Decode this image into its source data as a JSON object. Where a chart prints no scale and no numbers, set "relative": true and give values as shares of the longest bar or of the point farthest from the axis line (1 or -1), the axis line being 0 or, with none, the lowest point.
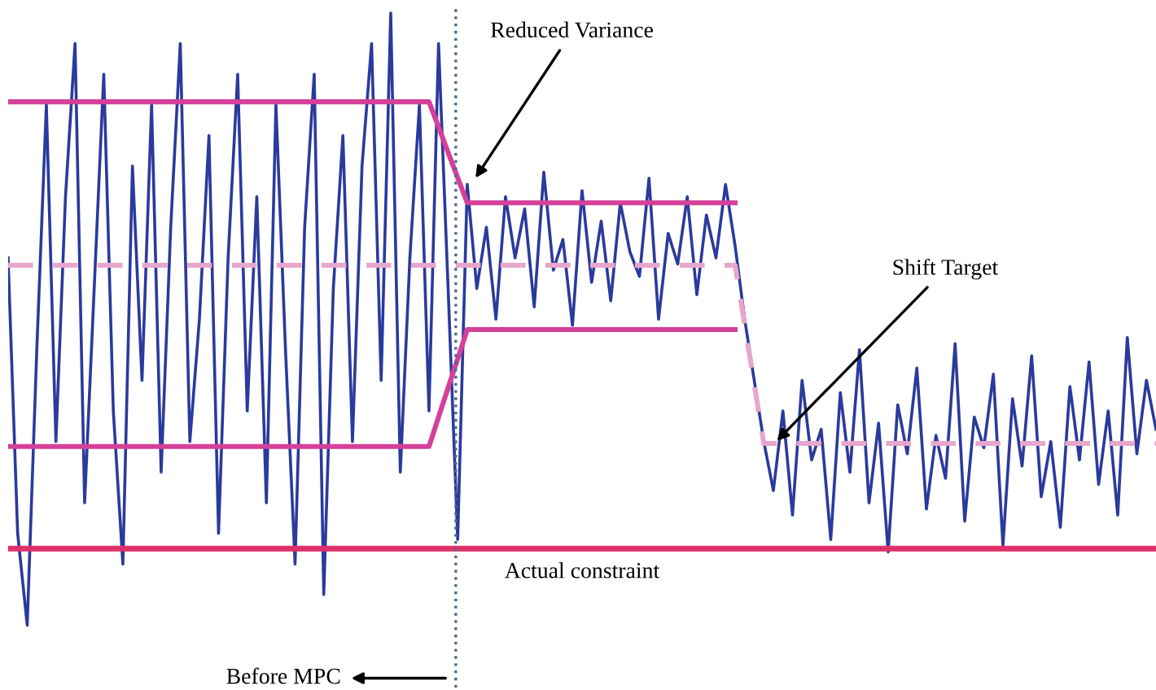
{
  "chart_data": {
    "type": "line",
    "relative": true,
    "legend": false,
    "categories": [
      null,
      null,
      null,
      null,
      null,
      null,
      null,
      null,
      null,
      null,
      null,
      null,
      null,
      null,
      null,
      null,
      null,
      null,
      null,
      null,
      null,
      null,
      null,
      null,
      null,
      null,
      null,
      null,
      null,
      null,
      null,
      null,
      null,
      null,
      null,
      null,
      null,
      null,
      null,
      null,
      null,
      null,
      null,
      null,
      null,
      null,
      null,
      null,
      null,
      null,
      null,
      null,
      null,
      null,
      null,
      null,
      null,
      null,
      null,
      null,
      null,
      null,
      null,
      null,
      null,
      null,
      null,
      null,
      null,
      null,
      null,
      null,
      null,
      null,
      null,
      null,
      null,
      null,
      null,
      null,
      null,
      null,
      null,
      null,
      null,
      null,
      null,
      null,
      null,
      null,
      null,
      null,
      null,
      null,
      null,
      null,
      null,
      null,
      null,
      null,
      null,
      null,
      null,
      null,
      null,
      null,
      null,
      null,
      null,
      null,
      null,
      null,
      null,
      null,
      null,
      null,
      null,
      null,
      null,
      null,
      null
    ],
    "series": [
      {
        "color": "#2b3a9c",
        "values": [
          0.6,
          0.15,
          0.0,
          0.45,
          0.85,
          0.3,
          0.7,
          0.95,
          0.2,
          0.55,
          0.9,
          0.35,
          0.1,
          0.75,
          0.4,
          0.85,
          0.25,
          0.65,
          0.95,
          0.3,
          0.5,
          0.8,
          0.15,
          0.6,
          0.9,
          0.35,
          0.7,
          0.2,
          0.85,
          0.45,
          0.1,
          0.65,
          0.9,
          0.05,
          0.55,
          0.8,
          0.3,
          0.75,
          0.95,
          0.4,
          1.0,
          0.25,
          0.6,
          0.85,
          0.35,
          0.95,
          0.55,
          0.14,
          0.72,
          0.55,
          0.65,
          0.5,
          0.7,
          0.6,
          0.68,
          0.52,
          0.74,
          0.58,
          0.63,
          0.49,
          0.71,
          0.56,
          0.66,
          0.53,
          0.69,
          0.61,
          0.57,
          0.73,
          0.5,
          0.64,
          0.59,
          0.7,
          0.54,
          0.67,
          0.6,
          0.72,
          0.62,
          0.5,
          0.4,
          0.3,
          0.22,
          0.35,
          0.18,
          0.4,
          0.27,
          0.32,
          0.14,
          0.38,
          0.25,
          0.45,
          0.2,
          0.33,
          0.12,
          0.36,
          0.28,
          0.42,
          0.19,
          0.31,
          0.24,
          0.46,
          0.17,
          0.34,
          0.29,
          0.41,
          0.13,
          0.37,
          0.26,
          0.44,
          0.21,
          0.3,
          0.16,
          0.39,
          0.27,
          0.43,
          0.23,
          0.35,
          0.18,
          0.47,
          0.28,
          0.4,
          0.32
        ]
      },
      {
        "color": "#d4409a",
        "values": [
          0.855,
          0.855,
          0.855,
          0.855,
          0.855,
          0.855,
          0.855,
          0.855,
          0.855,
          0.855,
          0.855,
          0.855,
          0.855,
          0.855,
          0.855,
          0.855,
          0.855,
          0.855,
          0.855,
          0.855,
          0.855,
          0.855,
          0.855,
          0.855,
          0.855,
          0.855,
          0.855,
          0.855,
          0.855,
          0.855,
          0.855,
          0.855,
          0.855,
          0.855,
          0.855,
          0.855,
          0.855,
          0.855,
          0.855,
          0.855,
          0.855,
          0.855,
          0.855,
          0.855,
          0.855,
          0.814,
          0.772,
          0.731,
          0.69,
          0.69,
          0.69,
          0.69,
          0.69,
          0.69,
          0.69,
          0.69,
          0.69,
          0.69,
          0.69,
          0.69,
          0.69,
          0.69,
          0.69,
          0.69,
          0.69,
          0.69,
          0.69,
          0.69,
          0.69,
          0.69,
          0.69,
          0.69,
          0.69,
          0.69,
          0.69,
          0.69,
          0.69,
          null,
          null,
          null,
          null,
          null,
          null,
          null,
          null,
          null,
          null,
          null,
          null,
          null,
          null,
          null,
          null,
          null,
          null,
          null,
          null,
          null,
          null,
          null,
          null,
          null,
          null,
          null,
          null,
          null,
          null,
          null,
          null,
          null,
          null,
          null,
          null,
          null,
          null,
          null,
          null,
          null,
          null,
          null,
          null
        ]
      },
      {
        "color": "#d4409a",
        "values": [
          0.292,
          0.292,
          0.292,
          0.292,
          0.292,
          0.292,
          0.292,
          0.292,
          0.292,
          0.292,
          0.292,
          0.292,
          0.292,
          0.292,
          0.292,
          0.292,
          0.292,
          0.292,
          0.292,
          0.292,
          0.292,
          0.292,
          0.292,
          0.292,
          0.292,
          0.292,
          0.292,
          0.292,
          0.292,
          0.292,
          0.292,
          0.292,
          0.292,
          0.292,
          0.292,
          0.292,
          0.292,
          0.292,
          0.292,
          0.292,
          0.292,
          0.292,
          0.292,
          0.292,
          0.292,
          0.34,
          0.388,
          0.435,
          0.483,
          0.483,
          0.483,
          0.483,
          0.483,
          0.483,
          0.483,
          0.483,
          0.483,
          0.483,
          0.483,
          0.483,
          0.483,
          0.483,
          0.483,
          0.483,
          0.483,
          0.483,
          0.483,
          0.483,
          0.483,
          0.483,
          0.483,
          0.483,
          0.483,
          0.483,
          0.483,
          0.483,
          0.483,
          null,
          null,
          null,
          null,
          null,
          null,
          null,
          null,
          null,
          null,
          null,
          null,
          null,
          null,
          null,
          null,
          null,
          null,
          null,
          null,
          null,
          null,
          null,
          null,
          null,
          null,
          null,
          null,
          null,
          null,
          null,
          null,
          null,
          null,
          null,
          null,
          null,
          null,
          null,
          null,
          null,
          null,
          null,
          null
        ]
      },
      {
        "color": "#e8a6cc",
        "line_style": "dashed",
        "values": [
          0.588,
          0.588,
          0.588,
          0.588,
          0.588,
          0.588,
          0.588,
          0.588,
          0.588,
          0.588,
          0.588,
          0.588,
          0.588,
          0.588,
          0.588,
          0.588,
          0.588,
          0.588,
          0.588,
          0.588,
          0.588,
          0.588,
          0.588,
          0.588,
          0.588,
          0.588,
          0.588,
          0.588,
          0.588,
          0.588,
          0.588,
          0.588,
          0.588,
          0.588,
          0.588,
          0.588,
          0.588,
          0.588,
          0.588,
          0.588,
          0.588,
          0.588,
          0.588,
          0.588,
          0.588,
          0.588,
          0.588,
          0.588,
          0.588,
          0.588,
          0.588,
          0.588,
          0.588,
          0.588,
          0.588,
          0.588,
          0.588,
          0.588,
          0.588,
          0.588,
          0.588,
          0.588,
          0.588,
          0.588,
          0.588,
          0.588,
          0.588,
          0.588,
          0.588,
          0.588,
          0.588,
          0.588,
          0.588,
          0.588,
          0.588,
          0.588,
          0.588,
          0.491,
          0.394,
          0.297,
          0.297,
          0.297,
          0.297,
          0.297,
          0.297,
          0.297,
          0.297,
          0.297,
          0.297,
          0.297,
          0.297,
          0.297,
          0.297,
          0.297,
          0.297,
          0.297,
          0.297,
          0.297,
          0.297,
          0.297,
          0.297,
          0.297,
          0.297,
          0.297,
          0.297,
          0.297,
          0.297,
          0.297,
          0.297,
          0.297,
          0.297,
          0.297,
          0.297,
          0.297,
          0.297,
          0.297,
          0.297,
          0.297,
          0.297,
          0.297,
          0.297
        ]
      }
    ],
    "ref_lines": [
      {
        "axis": "y",
        "value": 0.125,
        "label": "Actual constraint",
        "color": "#e0306a",
        "line_style": "solid"
      }
    ],
    "annotations": [
      "Reduced Variance",
      "Shift Target",
      "Before MPC"
    ]
  }
}
